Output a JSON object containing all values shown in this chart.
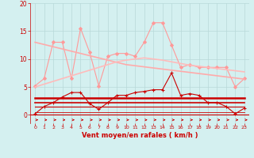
{
  "x": [
    0,
    1,
    2,
    3,
    4,
    5,
    6,
    7,
    8,
    9,
    10,
    11,
    12,
    13,
    14,
    15,
    16,
    17,
    18,
    19,
    20,
    21,
    22,
    23
  ],
  "series": [
    {
      "name": "rafales_pink",
      "color": "#ff9999",
      "alpha": 1.0,
      "linewidth": 0.8,
      "marker": "D",
      "markersize": 2.0,
      "values": [
        5.2,
        6.5,
        13.0,
        13.0,
        6.5,
        15.5,
        11.2,
        5.2,
        10.5,
        11.0,
        11.0,
        10.5,
        13.0,
        16.5,
        16.5,
        12.5,
        8.5,
        9.0,
        8.5,
        8.5,
        8.5,
        8.5,
        5.0,
        6.5
      ]
    },
    {
      "name": "trend_pink_down",
      "color": "#ffaaaa",
      "alpha": 1.0,
      "linewidth": 1.2,
      "marker": null,
      "markersize": 0,
      "values": [
        13.0,
        12.6,
        12.2,
        11.8,
        11.4,
        11.0,
        10.6,
        10.2,
        9.8,
        9.4,
        9.0,
        8.8,
        8.6,
        8.4,
        8.2,
        8.0,
        7.8,
        7.6,
        7.4,
        7.2,
        7.0,
        6.8,
        6.6,
        6.4
      ]
    },
    {
      "name": "trend_pink_up",
      "color": "#ffbbbb",
      "alpha": 1.0,
      "linewidth": 1.2,
      "marker": null,
      "markersize": 0,
      "values": [
        5.0,
        5.5,
        6.0,
        6.5,
        7.0,
        7.5,
        8.0,
        8.5,
        9.0,
        9.5,
        9.8,
        10.0,
        10.2,
        10.0,
        9.8,
        9.5,
        9.2,
        8.9,
        8.7,
        8.5,
        8.3,
        8.1,
        7.9,
        7.7
      ]
    },
    {
      "name": "vent_moyen",
      "color": "#cc0000",
      "alpha": 1.0,
      "linewidth": 0.8,
      "marker": "+",
      "markersize": 3.0,
      "values": [
        0.2,
        1.5,
        2.2,
        3.2,
        4.0,
        4.0,
        2.0,
        1.0,
        2.2,
        3.5,
        3.5,
        4.0,
        4.2,
        4.5,
        4.5,
        7.5,
        3.5,
        3.8,
        3.5,
        2.2,
        2.2,
        1.5,
        0.2,
        1.2
      ]
    },
    {
      "name": "trend_red1",
      "color": "#cc0000",
      "alpha": 1.0,
      "linewidth": 1.8,
      "marker": null,
      "markersize": 0,
      "values": [
        3.0,
        3.0,
        3.0,
        3.0,
        3.0,
        3.0,
        3.0,
        3.0,
        3.0,
        3.0,
        3.0,
        3.0,
        3.0,
        3.0,
        3.0,
        3.0,
        3.0,
        3.0,
        3.0,
        3.0,
        3.0,
        3.0,
        3.0,
        3.0
      ]
    },
    {
      "name": "trend_red2",
      "color": "#cc0000",
      "alpha": 1.0,
      "linewidth": 1.2,
      "marker": null,
      "markersize": 0,
      "values": [
        2.2,
        2.2,
        2.2,
        2.2,
        2.2,
        2.2,
        2.2,
        2.2,
        2.2,
        2.2,
        2.2,
        2.2,
        2.2,
        2.2,
        2.2,
        2.2,
        2.2,
        2.2,
        2.2,
        2.2,
        2.2,
        2.2,
        2.2,
        2.2
      ]
    },
    {
      "name": "trend_red3",
      "color": "#cc0000",
      "alpha": 1.0,
      "linewidth": 0.8,
      "marker": null,
      "markersize": 0,
      "values": [
        1.5,
        1.5,
        1.5,
        1.5,
        1.5,
        1.5,
        1.5,
        1.5,
        1.5,
        1.5,
        1.5,
        1.5,
        1.5,
        1.5,
        1.5,
        1.5,
        1.5,
        1.5,
        1.5,
        1.5,
        1.5,
        1.5,
        1.5,
        1.5
      ]
    },
    {
      "name": "trend_red4",
      "color": "#cc0000",
      "alpha": 1.0,
      "linewidth": 0.6,
      "marker": null,
      "markersize": 0,
      "values": [
        0.5,
        0.5,
        0.5,
        0.5,
        0.5,
        0.5,
        0.5,
        0.5,
        0.5,
        0.5,
        0.5,
        0.5,
        0.5,
        0.5,
        0.5,
        0.5,
        0.5,
        0.5,
        0.5,
        0.5,
        0.5,
        0.5,
        0.5,
        0.5
      ]
    }
  ],
  "arrow_color": "#cc0000",
  "xlabel": "Vent moyen/en rafales ( km/h )",
  "xlabel_color": "#cc0000",
  "background_color": "#d4f0f0",
  "grid_color": "#b8d8d8",
  "tick_color": "#cc0000",
  "ylim": [
    -1.5,
    20
  ],
  "yticks": [
    0,
    5,
    10,
    15,
    20
  ],
  "xlim": [
    -0.5,
    23.5
  ],
  "xticks": [
    0,
    1,
    2,
    3,
    4,
    5,
    6,
    7,
    8,
    9,
    10,
    11,
    12,
    13,
    14,
    15,
    16,
    17,
    18,
    19,
    20,
    21,
    22,
    23
  ]
}
